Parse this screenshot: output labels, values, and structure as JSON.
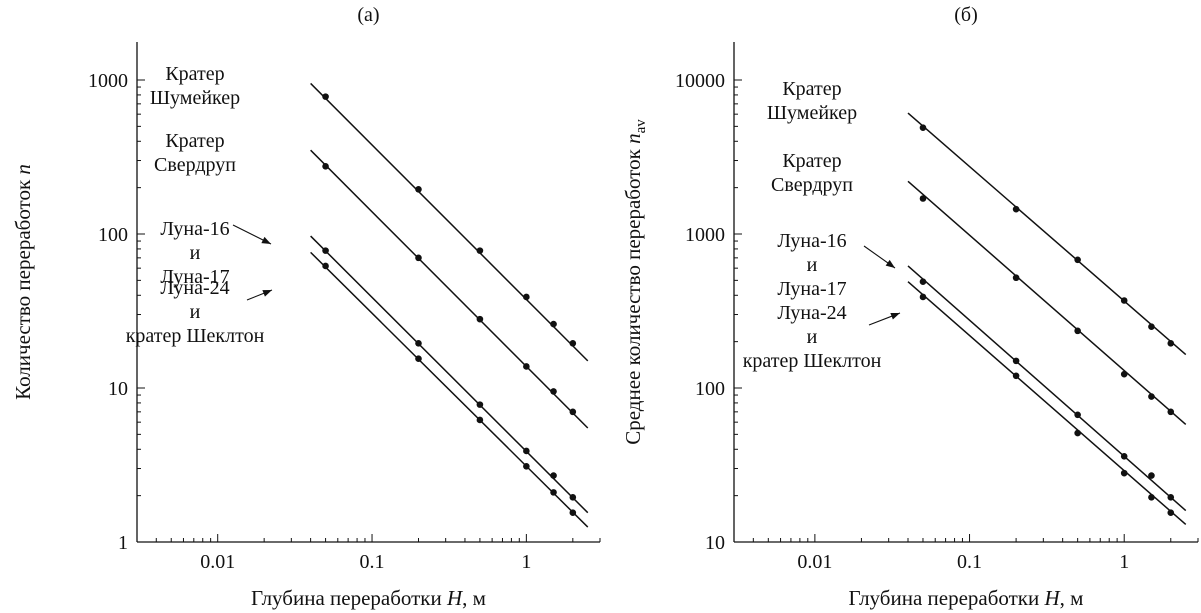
{
  "chart_data": [
    {
      "type": "scatter",
      "panel_label": "(а)",
      "xlabel_prefix": "Глубина переработки ",
      "xlabel_var": "H",
      "xlabel_suffix": ", м",
      "ylabel_prefix": "Количество переработок ",
      "ylabel_var": "n",
      "ylabel_sub": "",
      "xscale": "log",
      "yscale": "log",
      "xlim": [
        0.003,
        3
      ],
      "ylim": [
        1,
        1800
      ],
      "x_ticks": [
        0.01,
        0.1,
        1
      ],
      "x_tick_labels": [
        "0.01",
        "0.1",
        "1"
      ],
      "y_ticks": [
        1,
        10,
        100,
        1000
      ],
      "y_tick_labels": [
        "1",
        "10",
        "100",
        "1000"
      ],
      "grid": false,
      "series": [
        {
          "name_lines": [
            "Кратер",
            "Шумейкер"
          ],
          "x": [
            0.05,
            0.2,
            0.5,
            1,
            1.5,
            2
          ],
          "y": [
            780,
            195,
            78,
            39,
            26,
            19.5
          ],
          "line": [
            [
              0.04,
              950
            ],
            [
              2.5,
              15
            ]
          ]
        },
        {
          "name_lines": [
            "Кратер",
            "Свердруп"
          ],
          "x": [
            0.05,
            0.2,
            0.5,
            1,
            1.5,
            2
          ],
          "y": [
            275,
            70,
            28,
            13.8,
            9.5,
            7
          ],
          "line": [
            [
              0.04,
              350
            ],
            [
              2.5,
              5.5
            ]
          ]
        },
        {
          "name_lines": [
            "Луна-16",
            "и",
            "Луна-17"
          ],
          "x": [
            0.05,
            0.2,
            0.5,
            1,
            1.5,
            2
          ],
          "y": [
            78,
            19.5,
            7.8,
            3.9,
            2.7,
            1.95
          ],
          "line": [
            [
              0.04,
              97
            ],
            [
              2.5,
              1.55
            ]
          ]
        },
        {
          "name_lines": [
            "Луна-24",
            "и",
            "кратер Шеклтон"
          ],
          "x": [
            0.05,
            0.2,
            0.5,
            1,
            1.5,
            2
          ],
          "y": [
            62,
            15.5,
            6.2,
            3.1,
            2.1,
            1.55
          ],
          "line": [
            [
              0.04,
              76
            ],
            [
              2.5,
              1.25
            ]
          ]
        }
      ]
    },
    {
      "type": "scatter",
      "panel_label": "(б)",
      "xlabel_prefix": "Глубина переработки ",
      "xlabel_var": "H",
      "xlabel_suffix": ", м",
      "ylabel_prefix": "Среднее количество переработок ",
      "ylabel_var": "n",
      "ylabel_sub": "av",
      "xscale": "log",
      "yscale": "log",
      "xlim": [
        0.003,
        3
      ],
      "ylim": [
        10,
        18000
      ],
      "x_ticks": [
        0.01,
        0.1,
        1
      ],
      "x_tick_labels": [
        "0.01",
        "0.1",
        "1"
      ],
      "y_ticks": [
        10,
        100,
        1000,
        10000
      ],
      "y_tick_labels": [
        "10",
        "100",
        "1000",
        "10000"
      ],
      "grid": false,
      "series": [
        {
          "name_lines": [
            "Кратер",
            "Шумейкер"
          ],
          "x": [
            0.05,
            0.2,
            0.5,
            1,
            1.5,
            2
          ],
          "y": [
            4900,
            1450,
            680,
            370,
            250,
            195
          ],
          "line": [
            [
              0.04,
              6100
            ],
            [
              2.5,
              165
            ]
          ]
        },
        {
          "name_lines": [
            "Кратер",
            "Свердруп"
          ],
          "x": [
            0.05,
            0.2,
            0.5,
            1,
            1.5,
            2
          ],
          "y": [
            1700,
            520,
            235,
            123,
            88,
            70
          ],
          "line": [
            [
              0.04,
              2200
            ],
            [
              2.5,
              58
            ]
          ]
        },
        {
          "name_lines": [
            "Луна-16",
            "и",
            "Луна-17"
          ],
          "x": [
            0.05,
            0.2,
            0.5,
            1,
            1.5,
            2
          ],
          "y": [
            490,
            150,
            67,
            36,
            27,
            19.5
          ],
          "line": [
            [
              0.04,
              620
            ],
            [
              2.5,
              16
            ]
          ]
        },
        {
          "name_lines": [
            "Луна-24",
            "и",
            "кратер Шеклтон"
          ],
          "x": [
            0.05,
            0.2,
            0.5,
            1,
            1.5,
            2
          ],
          "y": [
            390,
            120,
            51,
            28,
            19.5,
            15.5
          ],
          "line": [
            [
              0.04,
              490
            ],
            [
              2.5,
              13
            ]
          ]
        }
      ]
    }
  ]
}
